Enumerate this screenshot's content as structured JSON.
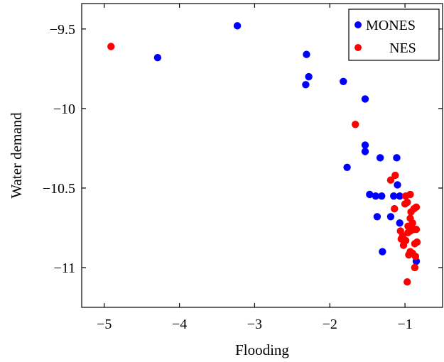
{
  "chart_data": {
    "type": "scatter",
    "title": "",
    "xlabel": "Flooding",
    "ylabel": "Water demand",
    "xlim": [
      -5.3,
      -0.5
    ],
    "ylim": [
      -11.25,
      -9.34
    ],
    "xticks": [
      -5,
      -4,
      -3,
      -2,
      -1
    ],
    "xtick_labels": [
      "−5",
      "−4",
      "−3",
      "−2",
      "−1"
    ],
    "yticks": [
      -9.5,
      -10,
      -10.5,
      -11
    ],
    "ytick_labels": [
      "−9.5",
      "−10",
      "−10.5",
      "−11"
    ],
    "grid": false,
    "legend_position": "top-right",
    "series": [
      {
        "name": "MONES",
        "color": "#0000ff",
        "points": [
          [
            -4.29,
            -9.68
          ],
          [
            -3.23,
            -9.48
          ],
          [
            -2.31,
            -9.66
          ],
          [
            -2.28,
            -9.8
          ],
          [
            -2.32,
            -9.85
          ],
          [
            -1.82,
            -9.83
          ],
          [
            -1.53,
            -9.94
          ],
          [
            -1.53,
            -10.23
          ],
          [
            -1.53,
            -10.27
          ],
          [
            -1.77,
            -10.37
          ],
          [
            -1.33,
            -10.31
          ],
          [
            -1.11,
            -10.31
          ],
          [
            -1.1,
            -10.48
          ],
          [
            -1.47,
            -10.54
          ],
          [
            -1.39,
            -10.55
          ],
          [
            -1.31,
            -10.55
          ],
          [
            -1.15,
            -10.55
          ],
          [
            -1.07,
            -10.55
          ],
          [
            -1.37,
            -10.68
          ],
          [
            -1.19,
            -10.68
          ],
          [
            -1.07,
            -10.72
          ],
          [
            -1.3,
            -10.9
          ],
          [
            -0.85,
            -10.96
          ]
        ]
      },
      {
        "name": "NES",
        "color": "#ff0000",
        "points": [
          [
            -4.91,
            -9.61
          ],
          [
            -1.66,
            -10.1
          ],
          [
            -1.19,
            -10.45
          ],
          [
            -1.13,
            -10.42
          ],
          [
            -1.14,
            -10.63
          ],
          [
            -0.99,
            -10.55
          ],
          [
            -0.93,
            -10.54
          ],
          [
            -1.0,
            -10.6
          ],
          [
            -0.97,
            -10.59
          ],
          [
            -0.92,
            -10.65
          ],
          [
            -0.88,
            -10.63
          ],
          [
            -0.85,
            -10.62
          ],
          [
            -0.93,
            -10.69
          ],
          [
            -0.9,
            -10.72
          ],
          [
            -0.96,
            -10.74
          ],
          [
            -0.93,
            -10.77
          ],
          [
            -0.96,
            -10.78
          ],
          [
            -1.06,
            -10.77
          ],
          [
            -1.03,
            -10.8
          ],
          [
            -1.05,
            -10.82
          ],
          [
            -0.99,
            -10.83
          ],
          [
            -1.02,
            -10.86
          ],
          [
            -0.88,
            -10.76
          ],
          [
            -0.85,
            -10.76
          ],
          [
            -0.87,
            -10.85
          ],
          [
            -0.84,
            -10.84
          ],
          [
            -0.93,
            -10.9
          ],
          [
            -0.9,
            -10.91
          ],
          [
            -0.95,
            -10.92
          ],
          [
            -0.86,
            -10.93
          ],
          [
            -0.87,
            -11.0
          ],
          [
            -0.97,
            -11.09
          ]
        ]
      }
    ]
  }
}
